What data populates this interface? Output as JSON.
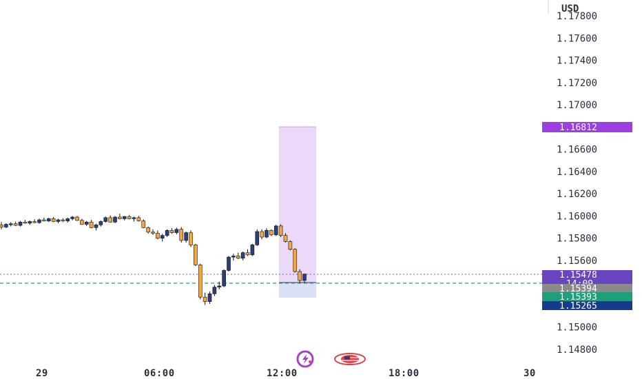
{
  "axis": {
    "currency": "USD",
    "price_ticks": [
      "1.17800",
      "1.17600",
      "1.17400",
      "1.17200",
      "1.17000",
      "1.16600",
      "1.16400",
      "1.16200",
      "1.16000",
      "1.15800",
      "1.15600",
      "1.15000",
      "1.14800"
    ],
    "time_ticks": [
      "29",
      "06:00",
      "12:00",
      "18:00",
      "30"
    ]
  },
  "price_tags": {
    "target": {
      "label": "1.16812",
      "color": "#9c3fe0"
    },
    "current": {
      "label": "1.15478",
      "color": "#6a45c2"
    },
    "countdown": {
      "label": "14:09",
      "color": "#6a45c2"
    },
    "entry": {
      "label": "1.15394",
      "color": "#8a8a8a"
    },
    "bid": {
      "label": "1.15393",
      "color": "#1e9e7a"
    },
    "stop": {
      "label": "1.15265",
      "color": "#173a8c"
    }
  },
  "icons": [
    "lightning-icon",
    "us-flag-icon"
  ],
  "colors": {
    "up_candle": "#2d3f77",
    "down_candle": "#f4a640",
    "target_zone": "#e8d5f7",
    "stop_zone": "#d5dcf3",
    "current_line": "#6a55cf",
    "bid_line": "#1e9e7a"
  },
  "chart_data": {
    "type": "candlestick",
    "y_range": [
      1.147,
      1.1795
    ],
    "candles": [
      [
        1.1592,
        1.15945,
        1.1588,
        1.159
      ],
      [
        1.159,
        1.15935,
        1.1589,
        1.15925
      ],
      [
        1.15925,
        1.15945,
        1.15905,
        1.1593
      ],
      [
        1.1593,
        1.1595,
        1.1591,
        1.15915
      ],
      [
        1.15915,
        1.15955,
        1.15905,
        1.15945
      ],
      [
        1.15945,
        1.15965,
        1.1593,
        1.15935
      ],
      [
        1.15935,
        1.1596,
        1.1592,
        1.1595
      ],
      [
        1.1595,
        1.1597,
        1.15935,
        1.1594
      ],
      [
        1.1594,
        1.15975,
        1.1593,
        1.15965
      ],
      [
        1.15965,
        1.15985,
        1.1595,
        1.15955
      ],
      [
        1.15955,
        1.15985,
        1.15945,
        1.15975
      ],
      [
        1.15975,
        1.1599,
        1.15945,
        1.1595
      ],
      [
        1.1595,
        1.15975,
        1.15935,
        1.15965
      ],
      [
        1.15965,
        1.1598,
        1.15945,
        1.15955
      ],
      [
        1.15955,
        1.15985,
        1.1594,
        1.15975
      ],
      [
        1.15975,
        1.16,
        1.1596,
        1.1599
      ],
      [
        1.1599,
        1.16,
        1.15955,
        1.1596
      ],
      [
        1.1596,
        1.15975,
        1.1592,
        1.15925
      ],
      [
        1.15925,
        1.15955,
        1.1591,
        1.15945
      ],
      [
        1.15945,
        1.15965,
        1.1589,
        1.15895
      ],
      [
        1.15895,
        1.1593,
        1.1587,
        1.1592
      ],
      [
        1.1592,
        1.1596,
        1.15905,
        1.1595
      ],
      [
        1.1595,
        1.15995,
        1.1594,
        1.15985
      ],
      [
        1.15985,
        1.16005,
        1.1594,
        1.15945
      ],
      [
        1.15945,
        1.16,
        1.15935,
        1.1599
      ],
      [
        1.1599,
        1.1602,
        1.1597,
        1.15975
      ],
      [
        1.15975,
        1.16,
        1.1596,
        1.15995
      ],
      [
        1.15995,
        1.1601,
        1.1597,
        1.15975
      ],
      [
        1.15975,
        1.15995,
        1.1595,
        1.15985
      ],
      [
        1.15985,
        1.16,
        1.1595,
        1.15955
      ],
      [
        1.15955,
        1.1597,
        1.1589,
        1.15895
      ],
      [
        1.15895,
        1.15905,
        1.1584,
        1.15855
      ],
      [
        1.15855,
        1.1588,
        1.1583,
        1.15845
      ],
      [
        1.15845,
        1.1587,
        1.1579,
        1.158
      ],
      [
        1.158,
        1.1584,
        1.1577,
        1.15825
      ],
      [
        1.15825,
        1.1588,
        1.1581,
        1.1587
      ],
      [
        1.1587,
        1.1589,
        1.1584,
        1.1585
      ],
      [
        1.1585,
        1.15895,
        1.15835,
        1.1588
      ],
      [
        1.1588,
        1.159,
        1.1576,
        1.1578
      ],
      [
        1.1578,
        1.1586,
        1.1576,
        1.1585
      ],
      [
        1.1585,
        1.1587,
        1.1572,
        1.1574
      ],
      [
        1.1574,
        1.1575,
        1.1555,
        1.1556
      ],
      [
        1.1556,
        1.1557,
        1.1525,
        1.1527
      ],
      [
        1.1527,
        1.1531,
        1.152,
        1.1523
      ],
      [
        1.1523,
        1.1532,
        1.1521,
        1.153
      ],
      [
        1.153,
        1.1538,
        1.1528,
        1.1536
      ],
      [
        1.1536,
        1.1541,
        1.1534,
        1.1537
      ],
      [
        1.1537,
        1.1552,
        1.1536,
        1.1551
      ],
      [
        1.1551,
        1.1564,
        1.155,
        1.1563
      ],
      [
        1.1563,
        1.1566,
        1.156,
        1.1564
      ],
      [
        1.1564,
        1.1567,
        1.1561,
        1.1562
      ],
      [
        1.1562,
        1.1568,
        1.156,
        1.1567
      ],
      [
        1.1567,
        1.157,
        1.1564,
        1.1565
      ],
      [
        1.1565,
        1.1575,
        1.1564,
        1.1574
      ],
      [
        1.1574,
        1.1588,
        1.1573,
        1.1586
      ],
      [
        1.1586,
        1.1588,
        1.1579,
        1.1581
      ],
      [
        1.1581,
        1.1589,
        1.158,
        1.1587
      ],
      [
        1.1587,
        1.1588,
        1.1582,
        1.1583
      ],
      [
        1.1583,
        1.1592,
        1.1582,
        1.1591
      ],
      [
        1.1591,
        1.15925,
        1.1581,
        1.15825
      ],
      [
        1.15825,
        1.15845,
        1.1576,
        1.1577
      ],
      [
        1.1577,
        1.1578,
        1.1569,
        1.157
      ],
      [
        1.157,
        1.1571,
        1.1549,
        1.155
      ],
      [
        1.155,
        1.1552,
        1.154,
        1.1542
      ],
      [
        1.1542,
        1.1548,
        1.154,
        1.15478
      ]
    ],
    "x_center_start": 2,
    "x_step": 6.875,
    "levels": {
      "current": 1.15478,
      "bid": 1.15393,
      "target": 1.16812,
      "stop": 1.15265
    }
  }
}
